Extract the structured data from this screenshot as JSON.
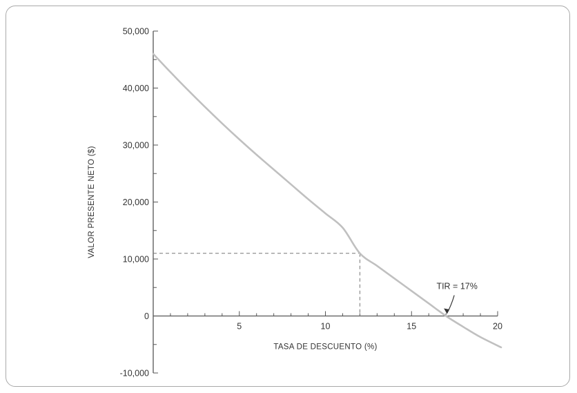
{
  "chart_data": {
    "type": "line",
    "title": "",
    "xlabel": "TASA DE DESCUENTO (%)",
    "ylabel": "VALOR PRESENTE NETO ($)",
    "xlim": [
      0,
      20.2
    ],
    "ylim": [
      -10000,
      50000
    ],
    "x_ticks": [
      5,
      10,
      15,
      20
    ],
    "x_tick_labels": [
      "5",
      "10",
      "15",
      "20"
    ],
    "y_ticks": [
      -10000,
      0,
      10000,
      20000,
      30000,
      40000,
      50000
    ],
    "y_tick_labels": [
      "-10,000",
      "0",
      "10,000",
      "20,000",
      "30,000",
      "40,000",
      "50,000"
    ],
    "grid": false,
    "legend": "none",
    "line_color": "#c0c0c0",
    "axis_color": "#555555",
    "series": [
      {
        "x": [
          0,
          1,
          2,
          3,
          4,
          5,
          6,
          7,
          8,
          9,
          10,
          11,
          12,
          13,
          14,
          15,
          16,
          17,
          18,
          19,
          20.2
        ],
        "values": [
          46000,
          42800,
          39700,
          36700,
          33800,
          31000,
          28300,
          25700,
          23100,
          20500,
          18000,
          15500,
          11000,
          8800,
          6600,
          4400,
          2200,
          0,
          -1900,
          -3700,
          -5500
        ]
      }
    ],
    "reference_point": {
      "x": 12,
      "y": 11000
    },
    "annotations": [
      {
        "text": "TIR = 17%",
        "x": 17,
        "y": 0
      }
    ]
  }
}
